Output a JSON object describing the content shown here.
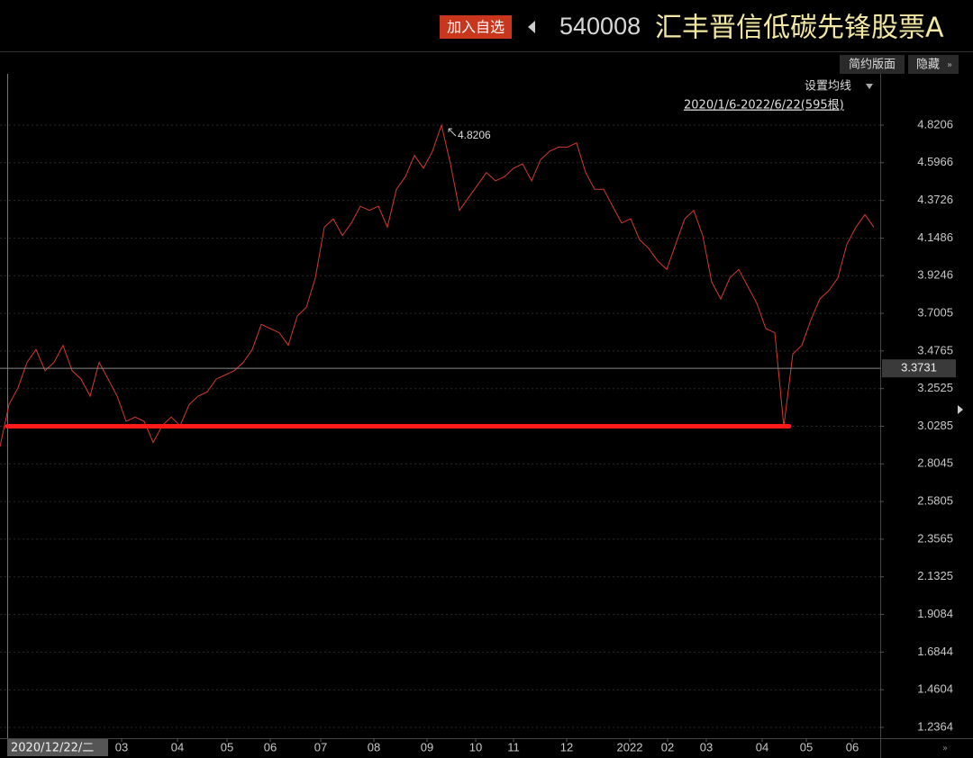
{
  "header": {
    "add_button": "加入自选",
    "code": "540008",
    "fund_name": "汇丰晋信低碳先锋股票A"
  },
  "toolbar": {
    "simple_layout": "简约版面",
    "hide": "隐藏",
    "ma_setting": "设置均线",
    "range": "2020/1/6-2022/6/22(595根)"
  },
  "chart_data": {
    "type": "line",
    "cursor_date": "2020/12/22/二",
    "peak_label": 4.8206,
    "current_price": 3.3731,
    "support_line": 3.0285,
    "support_color": "#ff1a1a",
    "series": [
      {
        "color": "#d23a2e",
        "values": [
          2.907,
          3.158,
          3.258,
          3.409,
          3.485,
          3.359,
          3.409,
          3.51,
          3.359,
          3.309,
          3.208,
          3.409,
          3.309,
          3.208,
          3.058,
          3.083,
          3.058,
          2.932,
          3.032,
          3.083,
          3.032,
          3.158,
          3.208,
          3.233,
          3.309,
          3.334,
          3.359,
          3.409,
          3.485,
          3.635,
          3.61,
          3.585,
          3.51,
          3.685,
          3.736,
          3.911,
          4.213,
          4.263,
          4.163,
          4.238,
          4.338,
          4.313,
          4.338,
          4.213,
          4.439,
          4.514,
          4.64,
          4.564,
          4.665,
          4.8206,
          4.59,
          4.313,
          4.389,
          4.464,
          4.539,
          4.489,
          4.514,
          4.564,
          4.59,
          4.489,
          4.615,
          4.665,
          4.69,
          4.69,
          4.715,
          4.539,
          4.439,
          4.439,
          4.338,
          4.238,
          4.263,
          4.138,
          4.087,
          4.012,
          3.962,
          4.112,
          4.263,
          4.313,
          4.163,
          3.886,
          3.786,
          3.911,
          3.962,
          3.861,
          3.761,
          3.61,
          3.585,
          3.028,
          3.459,
          3.51,
          3.66,
          3.786,
          3.836,
          3.911,
          4.112,
          4.213,
          4.288,
          4.213
        ]
      }
    ],
    "xlim": [
      0,
      97.7
    ],
    "xticks": [
      {
        "value": 13.5,
        "label": "03"
      },
      {
        "value": 19.7,
        "label": "04"
      },
      {
        "value": 25.2,
        "label": "05"
      },
      {
        "value": 30,
        "label": "06"
      },
      {
        "value": 35.6,
        "label": "07"
      },
      {
        "value": 41.5,
        "label": "08"
      },
      {
        "value": 47.4,
        "label": "09"
      },
      {
        "value": 52.8,
        "label": "10"
      },
      {
        "value": 57,
        "label": "11"
      },
      {
        "value": 62.9,
        "label": "12"
      },
      {
        "value": 69.9,
        "label": "2022"
      },
      {
        "value": 74.1,
        "label": "02"
      },
      {
        "value": 78.4,
        "label": "03"
      },
      {
        "value": 84.6,
        "label": "04"
      },
      {
        "value": 89.5,
        "label": "05"
      },
      {
        "value": 94.6,
        "label": "06"
      }
    ],
    "ylim": [
      1.1721,
      5.1099
    ],
    "yticks": [
      1.2364,
      1.4604,
      1.6844,
      1.9084,
      2.1325,
      2.3565,
      2.5805,
      2.8045,
      3.0285,
      3.2525,
      3.4765,
      3.7005,
      3.9246,
      4.1486,
      4.3726,
      4.5966,
      4.8206
    ],
    "grid": true
  }
}
